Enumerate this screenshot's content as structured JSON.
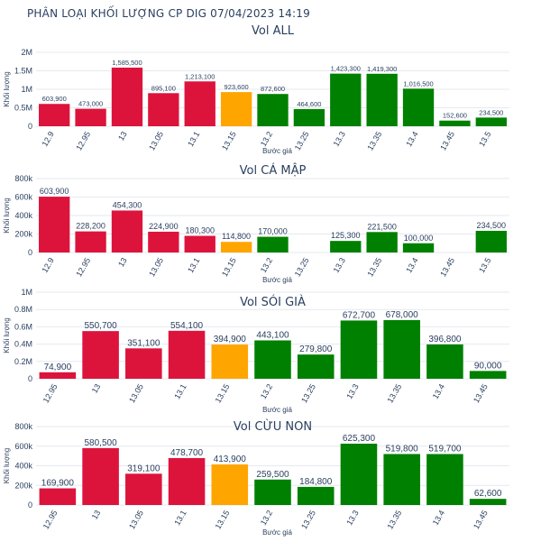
{
  "page": {
    "title": "PHÂN LOẠI KHỐI LƯỢNG CP DIG 07/04/2023 14:19"
  },
  "colors": {
    "red": "#dc143c",
    "orange": "#ffa500",
    "green": "#008000"
  },
  "chart_data": [
    {
      "type": "bar",
      "title": "Vol ALL",
      "xlabel": "Bước giá",
      "ylabel": "Khối lượng",
      "categories": [
        "12.9",
        "12.95",
        "13",
        "13.05",
        "13.1",
        "13.15",
        "13.2",
        "13.25",
        "13.3",
        "13.35",
        "13.4",
        "13.45",
        "13.5"
      ],
      "values": [
        603900,
        473000,
        1585500,
        895100,
        1213100,
        923600,
        872600,
        464600,
        1423300,
        1419300,
        1016500,
        152600,
        234500
      ],
      "value_labels": [
        "603,900",
        "473,000",
        "1,585,500",
        "895,100",
        "1,213,100",
        "923,600",
        "872,600",
        "464,600",
        "1,423,300",
        "1,419,300",
        "1,016,500",
        "152,600",
        "234,500"
      ],
      "colors": [
        "red",
        "red",
        "red",
        "red",
        "red",
        "orange",
        "green",
        "green",
        "green",
        "green",
        "green",
        "green",
        "green"
      ],
      "ylim": [
        0,
        2000000
      ],
      "yticks": [
        0,
        500000,
        1000000,
        1500000,
        2000000
      ],
      "ytick_labels": [
        "0",
        "0.5M",
        "1M",
        "1.5M",
        "2M"
      ],
      "grid": true
    },
    {
      "type": "bar",
      "title": "Vol CÁ MẬP",
      "xlabel": "Bước giá",
      "ylabel": "Khối lượng",
      "categories": [
        "12.9",
        "12.95",
        "13",
        "13.05",
        "13.1",
        "13.15",
        "13.2",
        "13.25",
        "13.3",
        "13.35",
        "13.4",
        "13.45",
        "13.5"
      ],
      "values": [
        603900,
        228200,
        454300,
        224900,
        180300,
        114800,
        170000,
        null,
        125300,
        221500,
        100000,
        null,
        234500
      ],
      "value_labels": [
        "603,900",
        "228,200",
        "454,300",
        "224,900",
        "180,300",
        "114,800",
        "170,000",
        "",
        "125,300",
        "221,500",
        "100,000",
        "",
        "234,500"
      ],
      "colors": [
        "red",
        "red",
        "red",
        "red",
        "red",
        "orange",
        "green",
        "green",
        "green",
        "green",
        "green",
        "green",
        "green"
      ],
      "ylim": [
        0,
        800000
      ],
      "yticks": [
        0,
        200000,
        400000,
        600000,
        800000
      ],
      "ytick_labels": [
        "0",
        "200k",
        "400k",
        "600k",
        "800k"
      ],
      "grid": true
    },
    {
      "type": "bar",
      "title": "Vol SÓI GIÀ",
      "xlabel": "Bước giá",
      "ylabel": "Khối lượng",
      "categories": [
        "12.95",
        "13",
        "13.05",
        "13.1",
        "13.15",
        "13.2",
        "13.25",
        "13.3",
        "13.35",
        "13.4",
        "13.45"
      ],
      "values": [
        74900,
        550700,
        351100,
        554100,
        394900,
        443100,
        279800,
        672700,
        678000,
        396800,
        90000
      ],
      "value_labels": [
        "74,900",
        "550,700",
        "351,100",
        "554,100",
        "394,900",
        "443,100",
        "279,800",
        "672,700",
        "678,000",
        "396,800",
        "90,000"
      ],
      "colors": [
        "red",
        "red",
        "red",
        "red",
        "orange",
        "green",
        "green",
        "green",
        "green",
        "green",
        "green"
      ],
      "ylim": [
        0,
        1000000
      ],
      "yticks": [
        0,
        200000,
        400000,
        600000,
        800000,
        1000000
      ],
      "ytick_labels": [
        "0",
        "0.2M",
        "0.4M",
        "0.6M",
        "0.8M",
        "1M"
      ],
      "grid": true
    },
    {
      "type": "bar",
      "title": "Vol CỪU NON",
      "xlabel": "Bước giá",
      "ylabel": "Khối lượng",
      "categories": [
        "12.95",
        "13",
        "13.05",
        "13.1",
        "13.15",
        "13.2",
        "13.25",
        "13.3",
        "13.35",
        "13.4",
        "13.45"
      ],
      "values": [
        169900,
        580500,
        319100,
        478700,
        413900,
        259500,
        184800,
        625300,
        519800,
        519700,
        62600
      ],
      "value_labels": [
        "169,900",
        "580,500",
        "319,100",
        "478,700",
        "413,900",
        "259,500",
        "184,800",
        "625,300",
        "519,800",
        "519,700",
        "62,600"
      ],
      "colors": [
        "red",
        "red",
        "red",
        "red",
        "orange",
        "green",
        "green",
        "green",
        "green",
        "green",
        "green"
      ],
      "ylim": [
        0,
        800000
      ],
      "yticks": [
        0,
        200000,
        400000,
        600000,
        800000
      ],
      "ytick_labels": [
        "0",
        "200k",
        "400k",
        "600k",
        "800k"
      ],
      "grid": true
    }
  ]
}
